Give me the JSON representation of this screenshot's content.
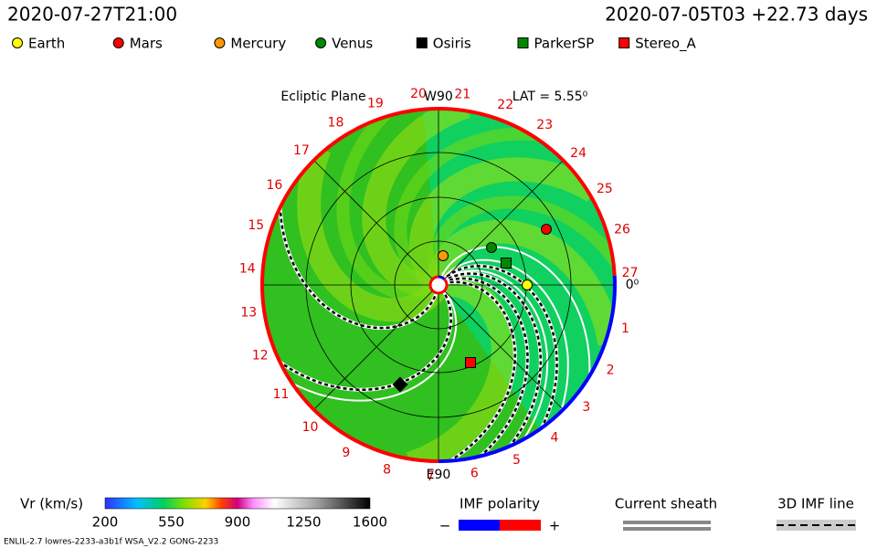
{
  "header": {
    "time": "2020-07-27T21:00",
    "reference": "2020-07-05T03 +22.73 days"
  },
  "legend": [
    {
      "name": "Earth",
      "color": "#ffff00",
      "shape": "circle"
    },
    {
      "name": "Mars",
      "color": "#ff0000",
      "shape": "circle"
    },
    {
      "name": "Mercury",
      "color": "#ff9900",
      "shape": "circle"
    },
    {
      "name": "Venus",
      "color": "#008800",
      "shape": "circle"
    },
    {
      "name": "Osiris",
      "color": "#000000",
      "shape": "square"
    },
    {
      "name": "ParkerSP",
      "color": "#008800",
      "shape": "square"
    },
    {
      "name": "Stereo_A",
      "color": "#ff0000",
      "shape": "square"
    }
  ],
  "plot": {
    "title": "Ecliptic Plane",
    "top_label": "W90",
    "bottom_label": "E90",
    "latitude": "LAT = 5.55⁰",
    "zero_label": "0⁰",
    "sectors": [
      "1",
      "2",
      "3",
      "4",
      "5",
      "6",
      "7",
      "8",
      "9",
      "10",
      "11",
      "12",
      "13",
      "14",
      "15",
      "16",
      "17",
      "18",
      "19",
      "20",
      "21",
      "22",
      "23",
      "24",
      "25",
      "26",
      "27"
    ]
  },
  "colorbar": {
    "label": "Vr (km/s)",
    "ticks": [
      200,
      550,
      900,
      1250,
      1600
    ]
  },
  "imf_polarity": {
    "title": "IMF polarity",
    "minus": "−",
    "plus": "+"
  },
  "current_sheath": {
    "title": "Current sheath"
  },
  "imf_line": {
    "title": "3D IMF line"
  },
  "footer": "ENLIL-2.7 lowres-2233-a3b1f WSA_V2.2 GONG-2233"
}
